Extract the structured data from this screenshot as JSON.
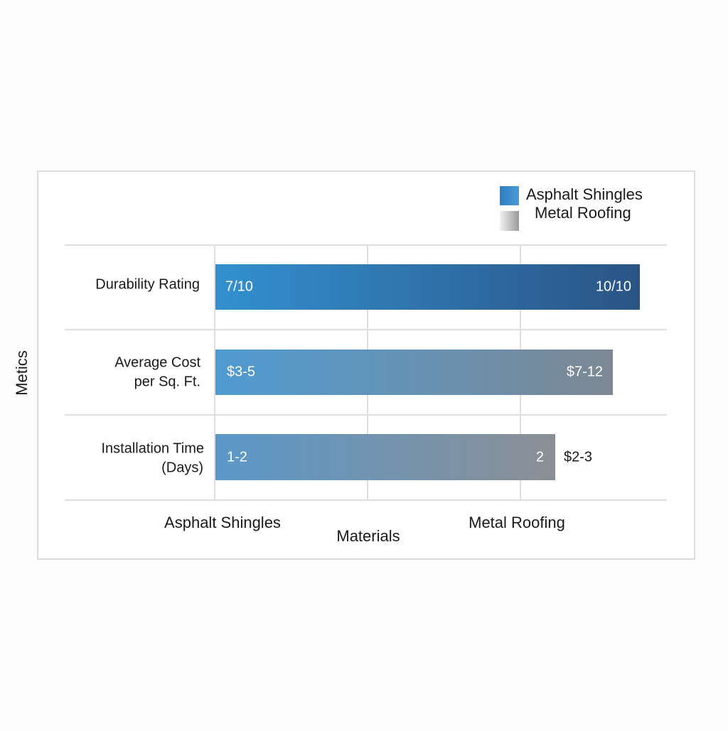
{
  "legend": {
    "items": [
      "Asphalt Shingles",
      "Metal Roofing"
    ]
  },
  "y_axis_label": "Metics",
  "x_axis_label": "Materials",
  "x_categories": [
    "Asphalt Shingles",
    "Metal Roofing"
  ],
  "rows": [
    {
      "label": [
        "Durability Rating"
      ],
      "left": "7/10",
      "right": "10/10"
    },
    {
      "label": [
        "Average Cost",
        "per Sq. Ft."
      ],
      "left": "$3-5",
      "right": "$7-12"
    },
    {
      "label": [
        "Installation Time",
        "(Days)"
      ],
      "left": "1-2",
      "right": "2",
      "outside": "$2-3"
    }
  ]
}
